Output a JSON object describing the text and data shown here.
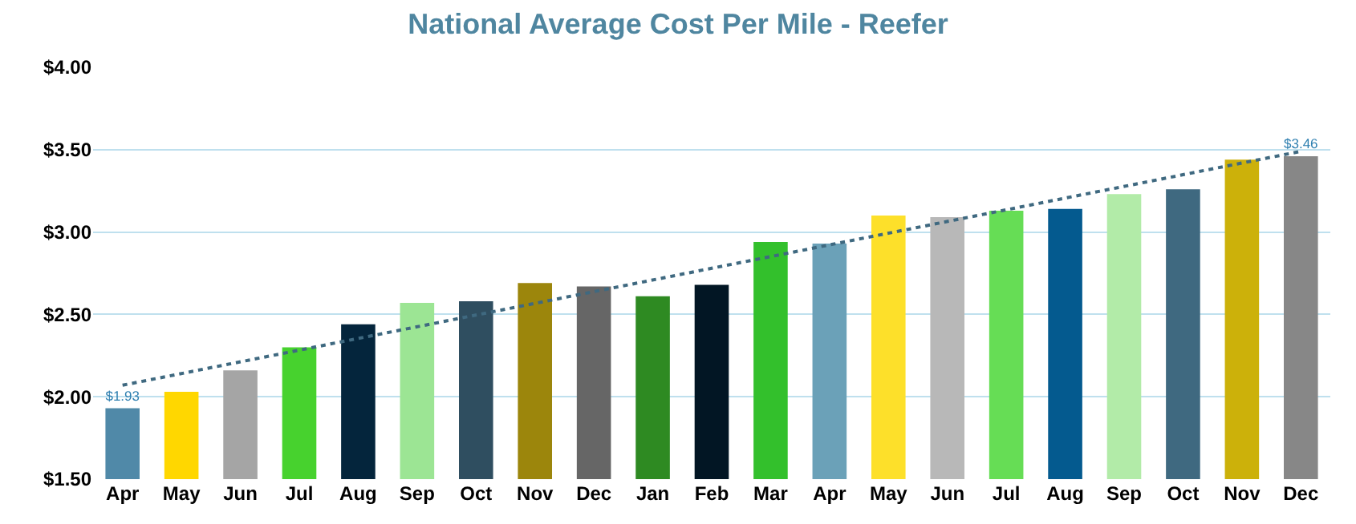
{
  "chart_data": {
    "type": "bar",
    "title": "National Average Cost Per Mile - Reefer",
    "categories": [
      "Apr",
      "May",
      "Jun",
      "Jul",
      "Aug",
      "Sep",
      "Oct",
      "Nov",
      "Dec",
      "Jan",
      "Feb",
      "Mar",
      "Apr",
      "May",
      "Jun",
      "Jul",
      "Aug",
      "Sep",
      "Oct",
      "Nov",
      "Dec"
    ],
    "series": [
      {
        "values": [
          1.93,
          2.03,
          2.16,
          2.3,
          2.44,
          2.57,
          2.58,
          2.69,
          2.67,
          2.61,
          2.68,
          2.94,
          2.93,
          3.1,
          3.09,
          3.13,
          3.14,
          3.23,
          3.26,
          3.44,
          3.46
        ],
        "colors": [
          "#5089a8",
          "#ffd700",
          "#a5a5a5",
          "#47d22e",
          "#04253c",
          "#9ce594",
          "#2f4e60",
          "#9c860c",
          "#666666",
          "#2e8a22",
          "#021624",
          "#33c02c",
          "#6ba1b8",
          "#fde02a",
          "#b8b8b8",
          "#66dd55",
          "#045a8f",
          "#b2eba8",
          "#3f6980",
          "#ccb10a",
          "#878787"
        ],
        "value_labels": [
          "$1.93",
          null,
          null,
          null,
          null,
          null,
          null,
          null,
          null,
          null,
          null,
          null,
          null,
          null,
          null,
          null,
          null,
          null,
          null,
          null,
          "$3.46"
        ]
      },
      {
        "type": "line",
        "color": "#3f6980",
        "line_style": "dotted",
        "values": [
          2.07,
          null,
          null,
          null,
          null,
          null,
          null,
          null,
          null,
          null,
          null,
          null,
          null,
          null,
          null,
          null,
          null,
          null,
          null,
          null,
          3.49
        ]
      }
    ],
    "ylim": [
      1.5,
      4.0
    ],
    "yticks": [
      {
        "value": 1.5,
        "label": "$1.50"
      },
      {
        "value": 2.0,
        "label": "$2.00"
      },
      {
        "value": 2.5,
        "label": "$2.50"
      },
      {
        "value": 3.0,
        "label": "$3.00"
      },
      {
        "value": 3.5,
        "label": "$3.50"
      },
      {
        "value": 4.0,
        "label": "$4.00"
      }
    ],
    "grid": "y"
  }
}
